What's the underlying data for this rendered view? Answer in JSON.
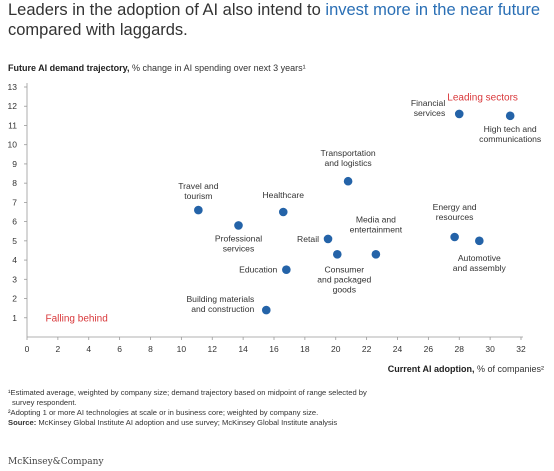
{
  "headline": {
    "part1": "Leaders in the adoption of AI also intend to ",
    "highlight": "invest more in the near future",
    "part2": " compared with laggards."
  },
  "colors": {
    "accent": "#2a6fb5",
    "marker": "#2463a8",
    "leading": "#d9383b"
  },
  "chart_data": {
    "type": "scatter",
    "ylabel_bold": "Future AI demand trajectory,",
    "ylabel_rest": " % change in AI spending over next 3 years¹",
    "xlabel_bold": "Current AI adoption,",
    "xlabel_rest": " % of companies²",
    "xlim": [
      0,
      32
    ],
    "ylim": [
      0,
      13
    ],
    "xticks": [
      0,
      2,
      4,
      6,
      8,
      10,
      12,
      14,
      16,
      18,
      20,
      22,
      24,
      26,
      28,
      30,
      32
    ],
    "yticks": [
      1,
      2,
      3,
      4,
      5,
      6,
      7,
      8,
      9,
      10,
      11,
      12,
      13
    ],
    "grid": false,
    "annotations": {
      "leading": "Leading sectors",
      "falling": "Falling behind"
    },
    "points": [
      {
        "label": [
          "Financial",
          "services"
        ],
        "x": 28.0,
        "y": 11.6
      },
      {
        "label": [
          "High tech and",
          "communications"
        ],
        "x": 31.3,
        "y": 11.5
      },
      {
        "label": [
          "Transportation",
          "and logistics"
        ],
        "x": 20.8,
        "y": 8.1
      },
      {
        "label": [
          "Travel and",
          "tourism"
        ],
        "x": 11.1,
        "y": 6.6
      },
      {
        "label": [
          "Healthcare"
        ],
        "x": 16.6,
        "y": 6.5
      },
      {
        "label": [
          "Professional",
          "services"
        ],
        "x": 13.7,
        "y": 5.8
      },
      {
        "label": [
          "Retail"
        ],
        "x": 19.5,
        "y": 5.1
      },
      {
        "label": [
          "Consumer",
          "and packaged",
          "goods"
        ],
        "x": 20.1,
        "y": 4.3
      },
      {
        "label": [
          "Media and",
          "entertainment"
        ],
        "x": 22.6,
        "y": 4.3
      },
      {
        "label": [
          "Energy and",
          "resources"
        ],
        "x": 27.7,
        "y": 5.2
      },
      {
        "label": [
          "Automotive",
          "and assembly"
        ],
        "x": 29.3,
        "y": 5.0
      },
      {
        "label": [
          "Education"
        ],
        "x": 16.8,
        "y": 3.5
      },
      {
        "label": [
          "Building materials",
          "and construction"
        ],
        "x": 15.5,
        "y": 1.4
      }
    ]
  },
  "footnotes": {
    "note1": "¹Estimated average, weighted by company size; demand trajectory based on midpoint of range selected by",
    "note1b": "survey respondent.",
    "note2": "²Adopting 1 or more AI technologies at scale or in business core; weighted by company size.",
    "source_label": "Source:",
    "source_text": " McKinsey Global Institute AI adoption and use survey; McKinsey Global Institute analysis"
  },
  "brand": "McKinsey&Company"
}
